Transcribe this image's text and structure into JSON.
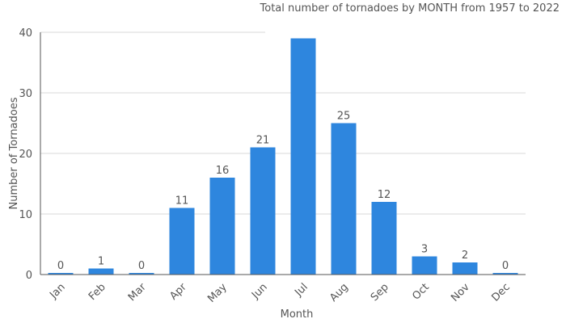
{
  "chart_data": {
    "type": "bar",
    "title": "Total number of tornadoes by MONTH from 1957 to 2022",
    "xlabel": "Month",
    "ylabel": "Number of Tornadoes",
    "categories": [
      "Jan",
      "Feb",
      "Mar",
      "Apr",
      "May",
      "Jun",
      "Jul",
      "Aug",
      "Sep",
      "Oct",
      "Nov",
      "Dec"
    ],
    "values": [
      0,
      1,
      0,
      11,
      16,
      21,
      39,
      25,
      12,
      3,
      2,
      0
    ],
    "ylim": [
      0,
      40
    ],
    "yticks": [
      0,
      10,
      20,
      30,
      40
    ],
    "grid": true,
    "legend": "none",
    "bar_color": "#2e86de"
  }
}
